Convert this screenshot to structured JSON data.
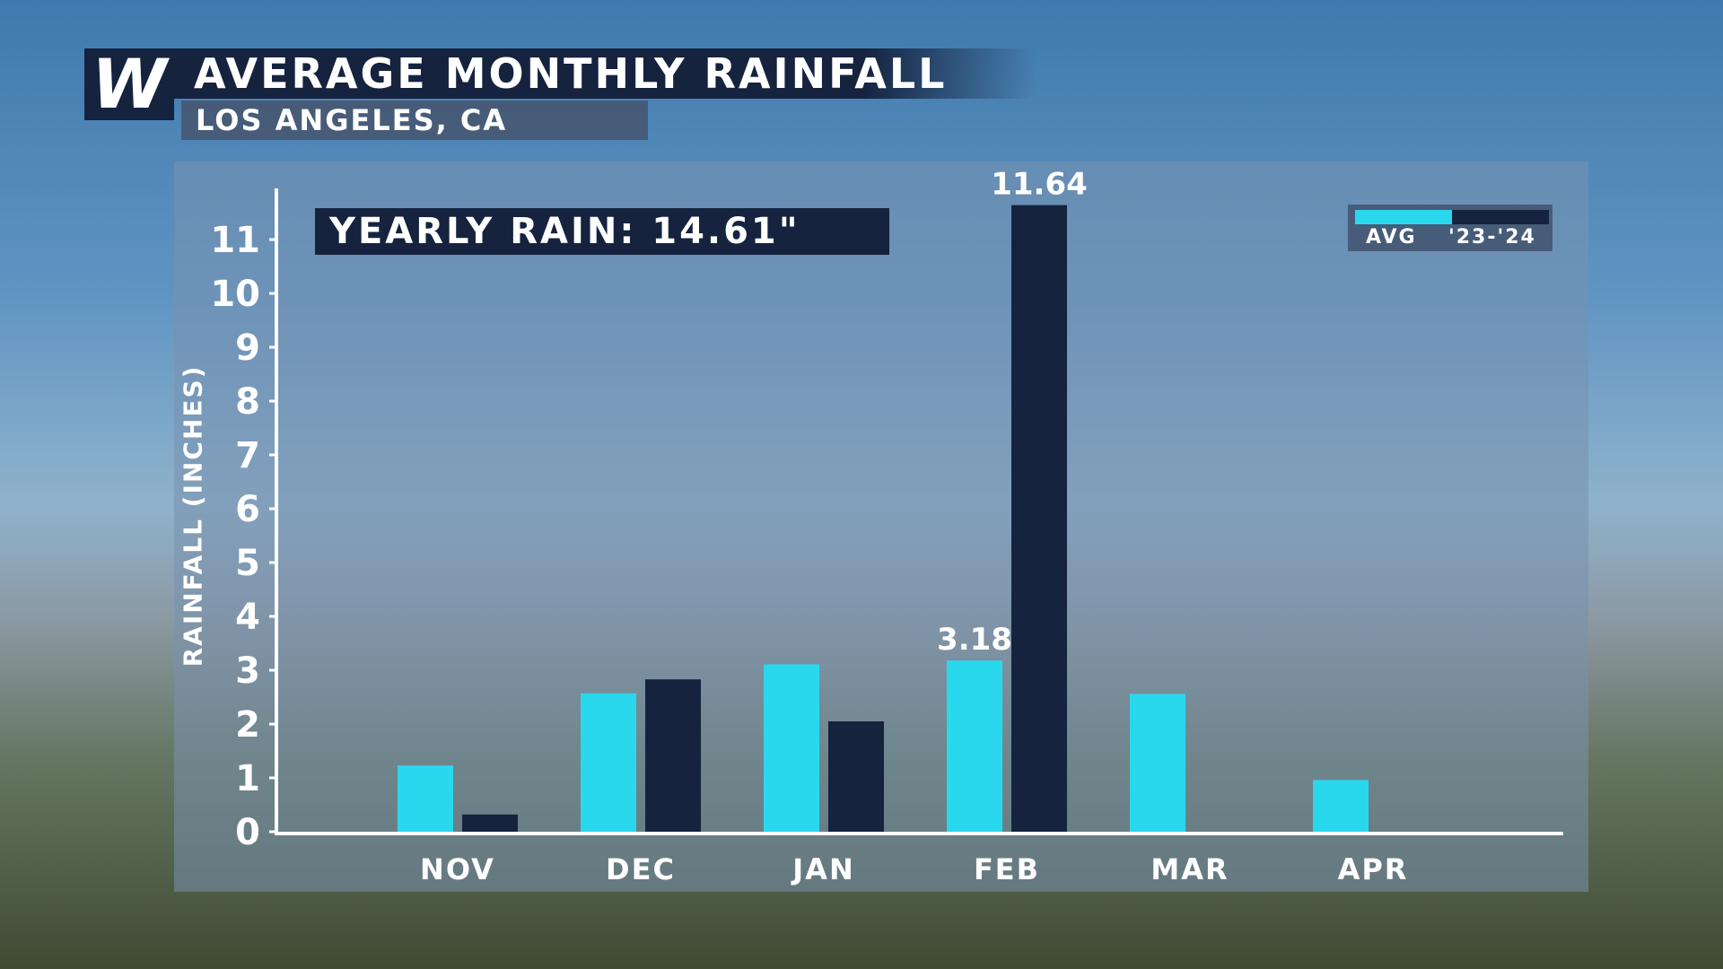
{
  "header": {
    "logo_letter": "W",
    "title": "AVERAGE MONTHLY RAINFALL",
    "subtitle": "LOS ANGELES, CA"
  },
  "annotation": {
    "yearly_rain": "YEARLY RAIN: 14.61\""
  },
  "legend": {
    "avg_label": "AVG",
    "current_label": "'23-'24"
  },
  "colors": {
    "avg": "#2ad8ee",
    "current": "#15233f",
    "axis": "#ffffff"
  },
  "chart_data": {
    "type": "bar",
    "title": "AVERAGE MONTHLY RAINFALL",
    "subtitle": "LOS ANGELES, CA",
    "ylabel": "RAINFALL (INCHES)",
    "xlabel": "",
    "categories": [
      "NOV",
      "DEC",
      "JAN",
      "FEB",
      "MAR",
      "APR"
    ],
    "series": [
      {
        "name": "AVG",
        "values": [
          1.23,
          2.57,
          3.11,
          3.18,
          2.56,
          0.96
        ]
      },
      {
        "name": "'23-'24",
        "values": [
          0.32,
          2.83,
          2.05,
          11.64,
          null,
          null
        ]
      }
    ],
    "y_ticks": [
      0,
      1,
      2,
      3,
      4,
      5,
      6,
      7,
      8,
      9,
      10,
      11
    ],
    "ylim": [
      0,
      11.9
    ],
    "data_labels": [
      {
        "series": "AVG",
        "category": "FEB",
        "text": "3.18"
      },
      {
        "series": "'23-'24",
        "category": "FEB",
        "text": "11.64"
      }
    ],
    "legend_position": "top-right",
    "grid": false
  }
}
